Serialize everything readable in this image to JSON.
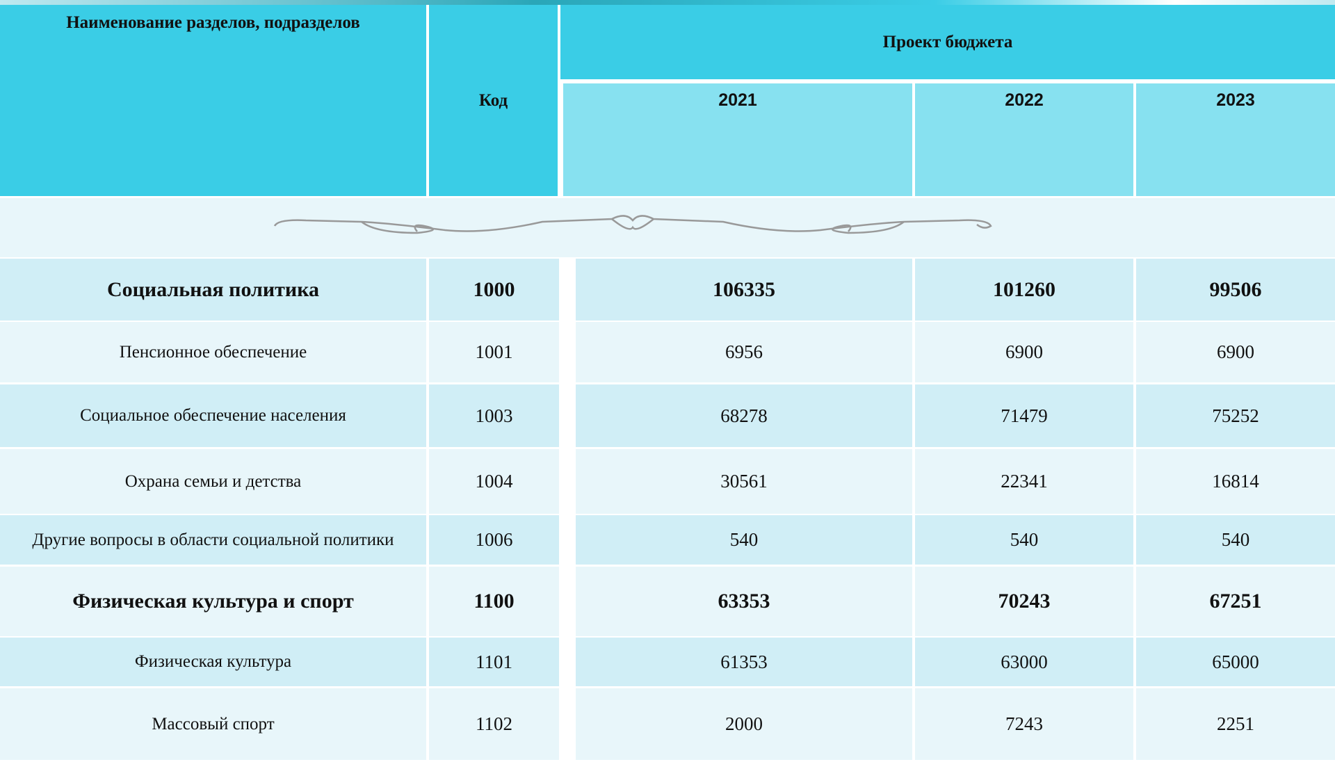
{
  "table": {
    "header": {
      "name": "Наименование разделов, подразделов",
      "code": "Код",
      "budget": "Проект бюджета",
      "years": [
        "2021",
        "2022",
        "2023"
      ]
    },
    "rows": [
      [
        "Социальная политика",
        "1000",
        106335,
        101260,
        99506
      ],
      [
        "Пенсионное обеспечение",
        "1001",
        6956,
        6900,
        6900
      ],
      [
        "Социальное обеспечение населения",
        "1003",
        68278,
        71479,
        75252
      ],
      [
        "Охрана семьи и детства",
        "1004",
        30561,
        22341,
        16814
      ],
      [
        "Другие вопросы в области социальной политики",
        "1006",
        540,
        540,
        540
      ],
      [
        "Физическая культура и спорт",
        "1100",
        63353,
        70243,
        67251
      ],
      [
        "Физическая культура",
        "1101",
        61353,
        63000,
        65000
      ],
      [
        "Массовый спорт",
        "1102",
        2000,
        7243,
        2251
      ]
    ]
  }
}
